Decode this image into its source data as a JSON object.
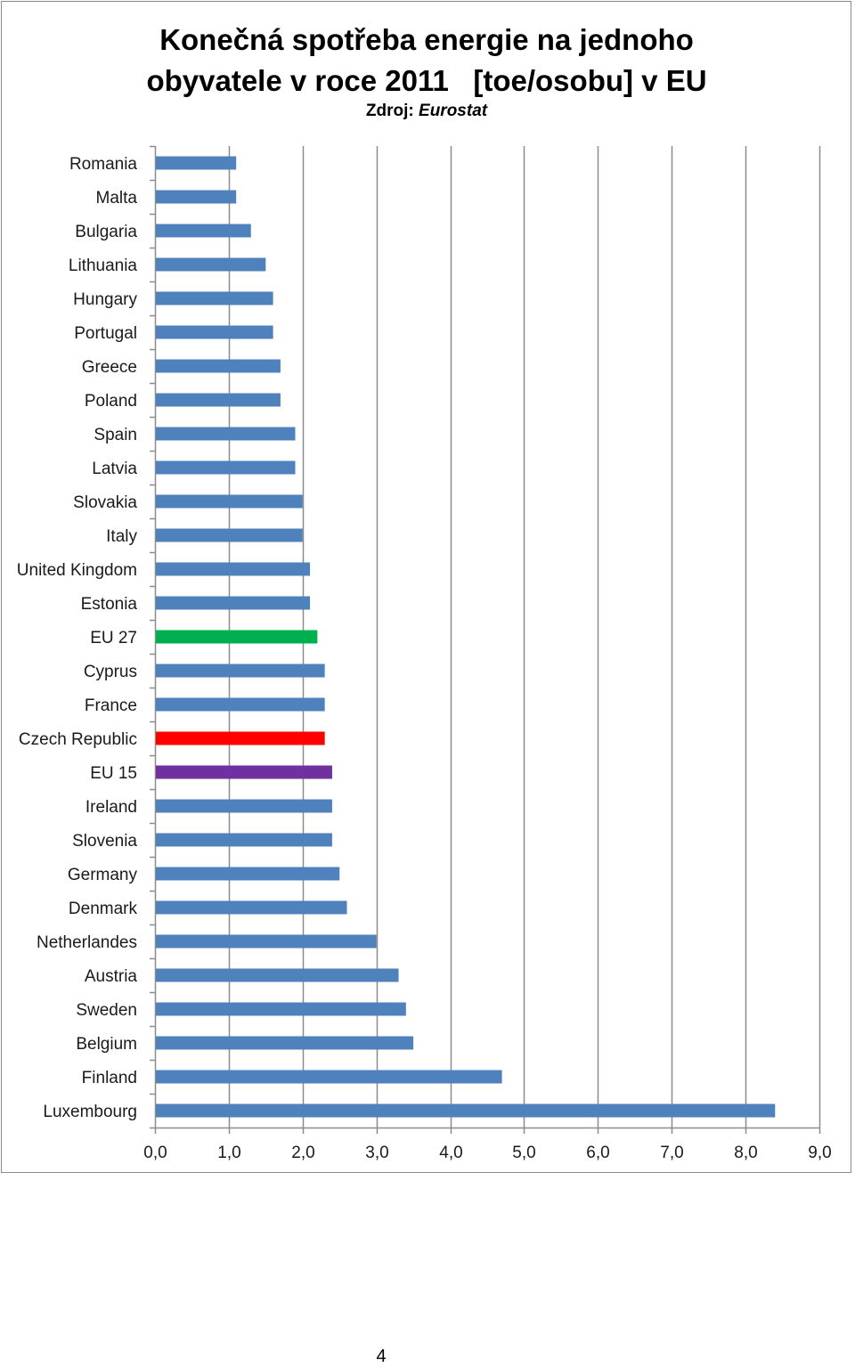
{
  "chart_data": {
    "type": "bar",
    "orientation": "horizontal",
    "title_line1": "Konečná spotřeba energie na jednoho",
    "title_line2": "obyvatele v roce 2011   [toe/osobu] v EU",
    "subtitle_prefix": "Zdroj: ",
    "subtitle_source": "Eurostat",
    "categories": [
      "Romania",
      "Malta",
      "Bulgaria",
      "Lithuania",
      "Hungary",
      "Portugal",
      "Greece",
      "Poland",
      "Spain",
      "Latvia",
      "Slovakia",
      "Italy",
      "United Kingdom",
      "Estonia",
      "EU 27",
      "Cyprus",
      "France",
      "Czech Republic",
      "EU 15",
      "Ireland",
      "Slovenia",
      "Germany",
      "Denmark",
      "Netherlandes",
      "Austria",
      "Sweden",
      "Belgium",
      "Finland",
      "Luxembourg"
    ],
    "values": [
      1.1,
      1.1,
      1.3,
      1.5,
      1.6,
      1.6,
      1.7,
      1.7,
      1.9,
      1.9,
      2.0,
      2.0,
      2.1,
      2.1,
      2.2,
      2.3,
      2.3,
      2.3,
      2.4,
      2.4,
      2.4,
      2.5,
      2.6,
      3.0,
      3.3,
      3.4,
      3.5,
      4.7,
      8.4
    ],
    "xlim": [
      0,
      9
    ],
    "x_ticks": [
      "0,0",
      "1,0",
      "2,0",
      "3,0",
      "4,0",
      "5,0",
      "6,0",
      "7,0",
      "8,0",
      "9,0"
    ],
    "grid": "vertical",
    "default_bar_color": "#4f81bd",
    "highlight_colors": {
      "EU 27": "#00b050",
      "Czech Republic": "#ff0000",
      "EU 15": "#7030a0"
    },
    "gridline_color": "#8c8c8c"
  },
  "page": {
    "number": "4"
  }
}
